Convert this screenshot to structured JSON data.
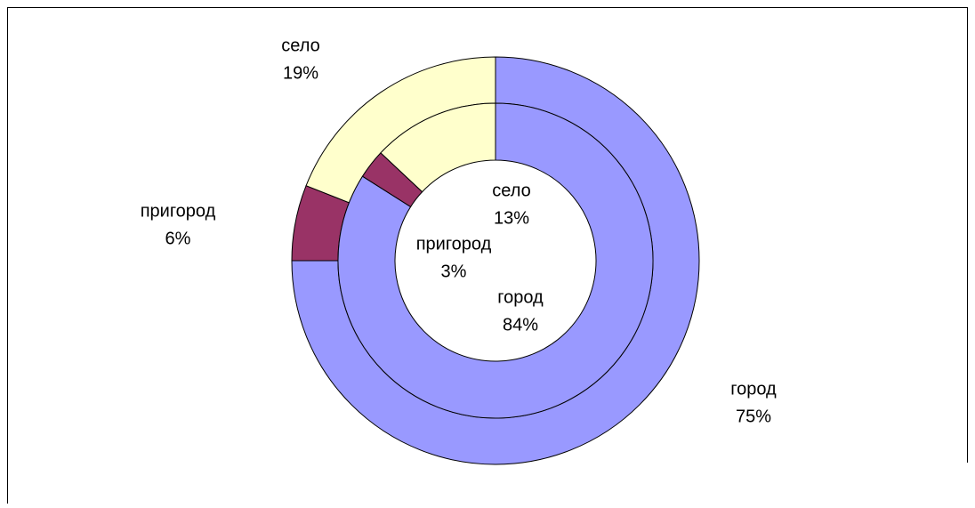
{
  "chart_data": {
    "type": "donut",
    "categories": [
      "город",
      "пригород",
      "село"
    ],
    "colors": [
      "#9999ff",
      "#993366",
      "#ffffcc"
    ],
    "rings": [
      {
        "values": [
          75,
          6,
          19
        ],
        "value_labels": [
          "75%",
          "6%",
          "19%"
        ]
      },
      {
        "values": [
          84,
          3,
          13
        ],
        "value_labels": [
          "84%",
          "3%",
          "13%"
        ]
      }
    ]
  }
}
